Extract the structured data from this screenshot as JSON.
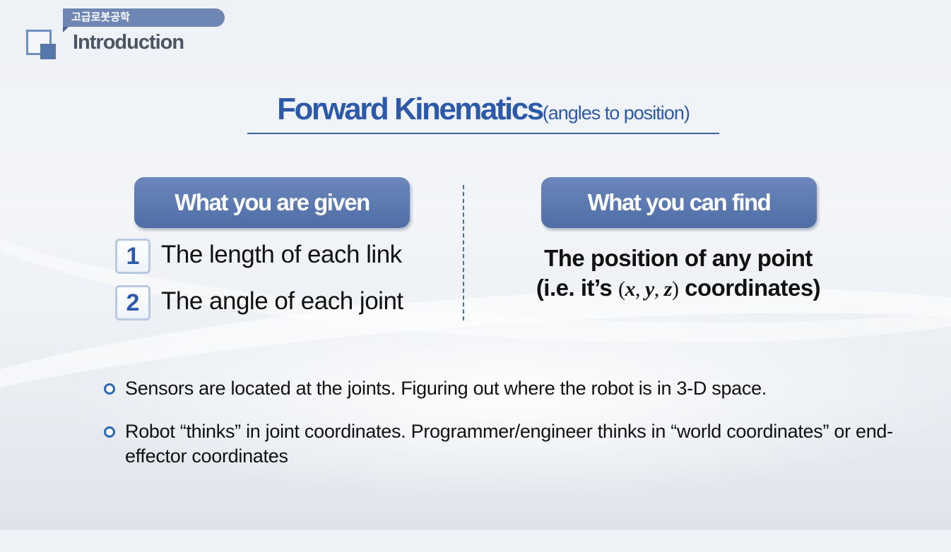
{
  "header": {
    "course_name": "고급로봇공학",
    "section_title": "Introduction"
  },
  "heading": {
    "main": "Forward Kinematics",
    "sub": "(angles to position)"
  },
  "given": {
    "label": "What you are given",
    "items": [
      {
        "number": "1",
        "text": "The length of each link"
      },
      {
        "number": "2",
        "text": "The angle of each joint"
      }
    ]
  },
  "find": {
    "label": "What you can find",
    "line1": "The position of any point",
    "line2_prefix": "(i.e. it’s ",
    "math_open": "(",
    "var_x": "x",
    "var_y": "y",
    "var_z": "z",
    "math_sep": ", ",
    "math_close": ")",
    "line2_suffix": " coordinates)"
  },
  "bullets": [
    "Sensors are located at the joints. Figuring out where the robot is in 3-D space.",
    "Robot “thinks” in joint coordinates. Programmer/engineer thinks in “world coordinates” or end-effector coordinates"
  ],
  "colors": {
    "accent": "#2d5aa8",
    "pill": "#5b79b0",
    "tag": "#6d86b3"
  }
}
